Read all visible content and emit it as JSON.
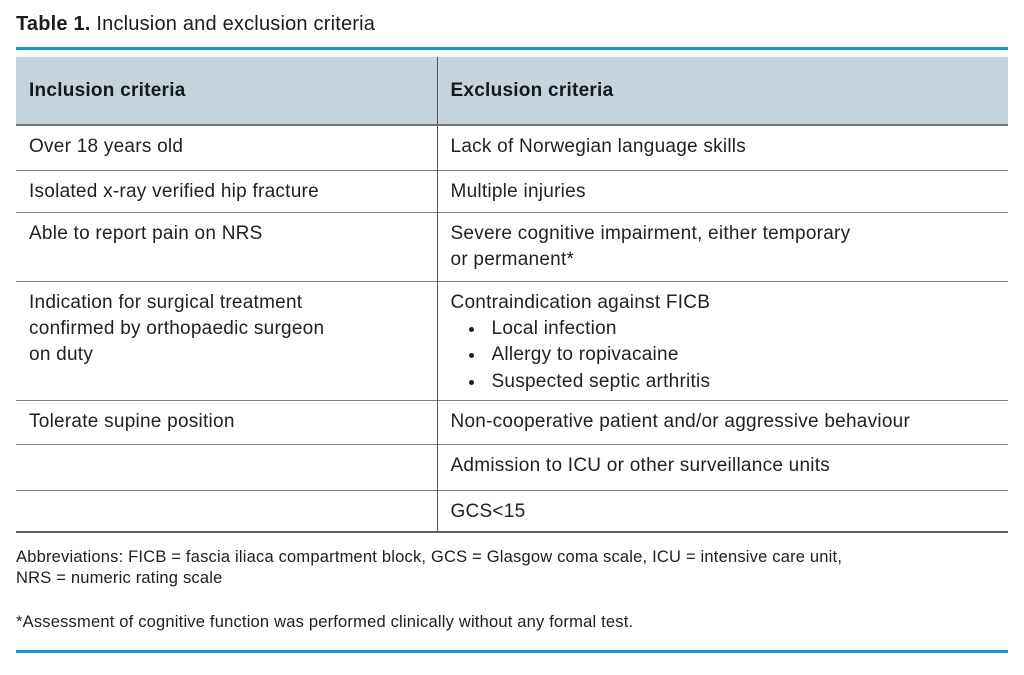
{
  "title": {
    "label": "Table 1.",
    "text": "Inclusion and exclusion criteria"
  },
  "table": {
    "headers": [
      "Inclusion criteria",
      "Exclusion criteria"
    ],
    "rows": [
      {
        "inclusion": "Over 18 years old",
        "exclusion": "Lack of Norwegian language skills"
      },
      {
        "inclusion": "Isolated x-ray verified hip fracture",
        "exclusion": "Multiple injuries"
      },
      {
        "inclusion": "Able to report pain on NRS",
        "exclusion": "Severe cognitive impairment, either temporary\nor permanent*"
      },
      {
        "inclusion": "Indication for surgical treatment\nconfirmed by orthopaedic surgeon\non duty",
        "exclusion": "Contraindication against FICB",
        "exclusion_bullets": [
          "Local infection",
          "Allergy to ropivacaine",
          "Suspected septic arthritis"
        ]
      },
      {
        "inclusion": "Tolerate supine position",
        "exclusion": "Non-cooperative patient and/or aggressive behaviour"
      },
      {
        "inclusion": "",
        "exclusion": "Admission to ICU or other surveillance units"
      },
      {
        "inclusion": "",
        "exclusion": "GCS<15"
      }
    ]
  },
  "footnotes": {
    "abbreviations": "Abbreviations: FICB = fascia iliaca compartment block, GCS = Glasgow coma scale, ICU = intensive care unit,\nNRS = numeric rating scale",
    "asterisk": "*Assessment of cognitive function was performed clinically without any formal test."
  },
  "colors": {
    "accent_blue": "#1b96d3",
    "header_background": "#c5d3dd",
    "text": "#1d2126"
  }
}
